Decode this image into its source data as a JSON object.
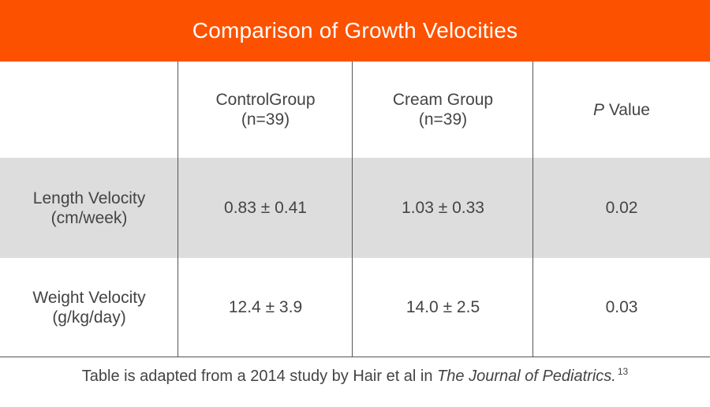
{
  "title": "Comparison of Growth Velocities",
  "columns": {
    "control": "ControlGroup\n(n=39)",
    "cream": "Cream Group\n(n=39)",
    "p_italic": "P",
    "p_rest": " Value"
  },
  "rows": [
    {
      "label": "Length Velocity\n(cm/week)",
      "control": "0.83 ± 0.41",
      "cream": "1.03 ± 0.33",
      "p": "0.02"
    },
    {
      "label": "Weight Velocity\n(g/kg/day)",
      "control": "12.4 ± 3.9",
      "cream": "14.0 ± 2.5",
      "p": "0.03"
    }
  ],
  "footnote": {
    "prefix": "Table is adapted from a 2014 study by Hair et al in ",
    "journal": "The Journal of Pediatrics.",
    "ref": "13"
  },
  "colors": {
    "title_bar": "#fc5200",
    "shaded_row": "#dddddd",
    "text": "#444444"
  }
}
